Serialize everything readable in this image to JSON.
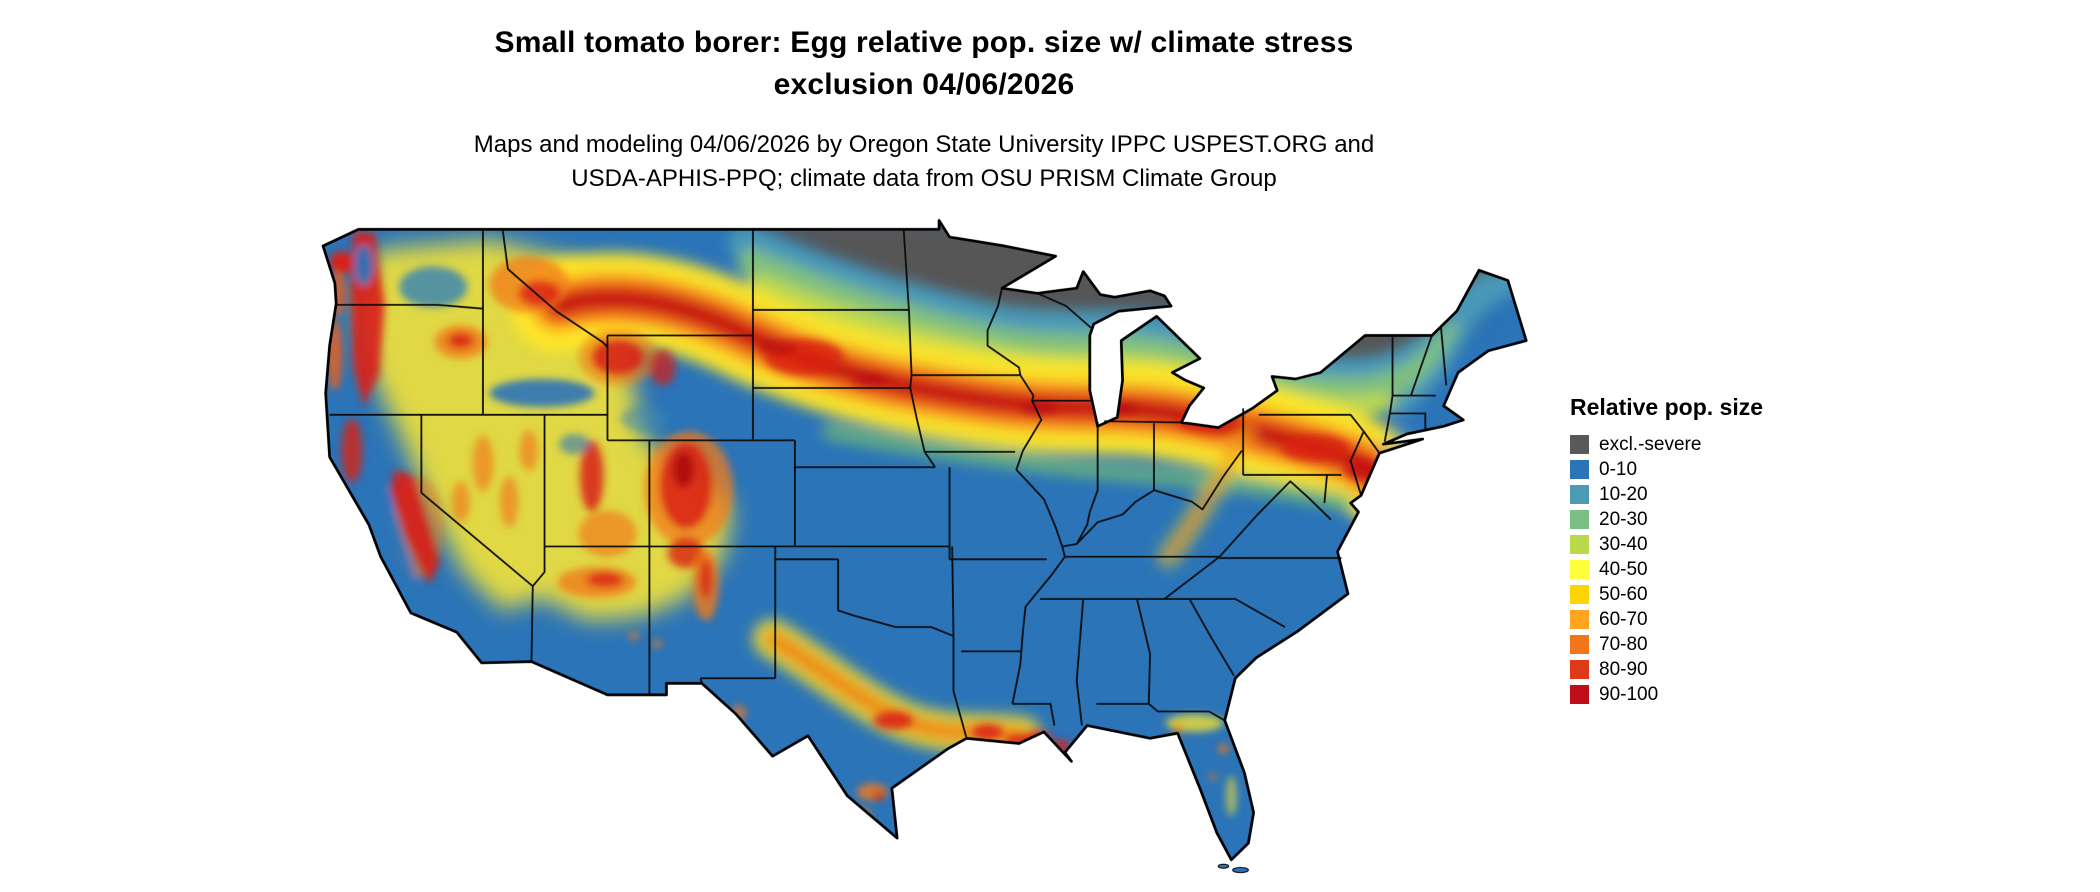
{
  "header": {
    "title_line1": "Small tomato borer: Egg relative pop. size w/ climate stress",
    "title_line2": "exclusion 04/06/2026",
    "subtitle_line1": "Maps and modeling 04/06/2026 by Oregon State University IPPC USPEST.ORG and",
    "subtitle_line2": "USDA-APHIS-PPQ; climate data from OSU PRISM Climate Group"
  },
  "legend": {
    "title": "Relative pop. size",
    "items": [
      {
        "label": "excl.-severe",
        "color": "#595959"
      },
      {
        "label": "0-10",
        "color": "#2b74b8"
      },
      {
        "label": "10-20",
        "color": "#4d9ab5"
      },
      {
        "label": "20-30",
        "color": "#7cbf85"
      },
      {
        "label": "30-40",
        "color": "#b9d94b"
      },
      {
        "label": "40-50",
        "color": "#ffff3d"
      },
      {
        "label": "50-60",
        "color": "#fed405"
      },
      {
        "label": "60-70",
        "color": "#ffa51f"
      },
      {
        "label": "70-80",
        "color": "#f4761b"
      },
      {
        "label": "80-90",
        "color": "#df3a17"
      },
      {
        "label": "90-100",
        "color": "#c00d1a"
      }
    ]
  },
  "chart_data": {
    "type": "heatmap",
    "title": "Small tomato borer: Egg relative pop. size w/ climate stress exclusion 04/06/2026",
    "legend_title": "Relative pop. size",
    "classes": [
      "excl.-severe",
      "0-10",
      "10-20",
      "20-30",
      "30-40",
      "40-50",
      "50-60",
      "60-70",
      "70-80",
      "80-90",
      "90-100"
    ],
    "colors": [
      "#595959",
      "#2b74b8",
      "#4d9ab5",
      "#7cbf85",
      "#b9d94b",
      "#ffff3d",
      "#fed405",
      "#ffa51f",
      "#f4761b",
      "#df3a17",
      "#c00d1a"
    ],
    "region": "Conterminous United States",
    "date_shown": "04/06/2026",
    "source_text": "Maps and modeling 04/06/2026 by Oregon State University IPPC USPEST.ORG and USDA-APHIS-PPQ; climate data from OSU PRISM Climate Group",
    "spatial_pattern": [
      "Dark gray (excluded-severe) band across the far northern states: North Dakota (east), Minnesota, Wisconsin, upper Michigan, Adirondacks and northern New England",
      "High 70-100 band (red/orange) arcs from Montana through South Dakota, Nebraska, Iowa, northern Illinois/Indiana/Ohio, Pennsylvania to New Jersey",
      "Mountain west (Cascades, Sierra Nevada, Idaho/Montana Rockies, Wasatch, Colorado Rockies, Mogollon Rim) shows high 60-100 values over a 30-60 yellow wash",
      "Southern and eastern US mostly 0-10 blue, with a 40-90 band across central Texas to the Louisiana Gulf coast and scattered highs in north Florida"
    ]
  }
}
